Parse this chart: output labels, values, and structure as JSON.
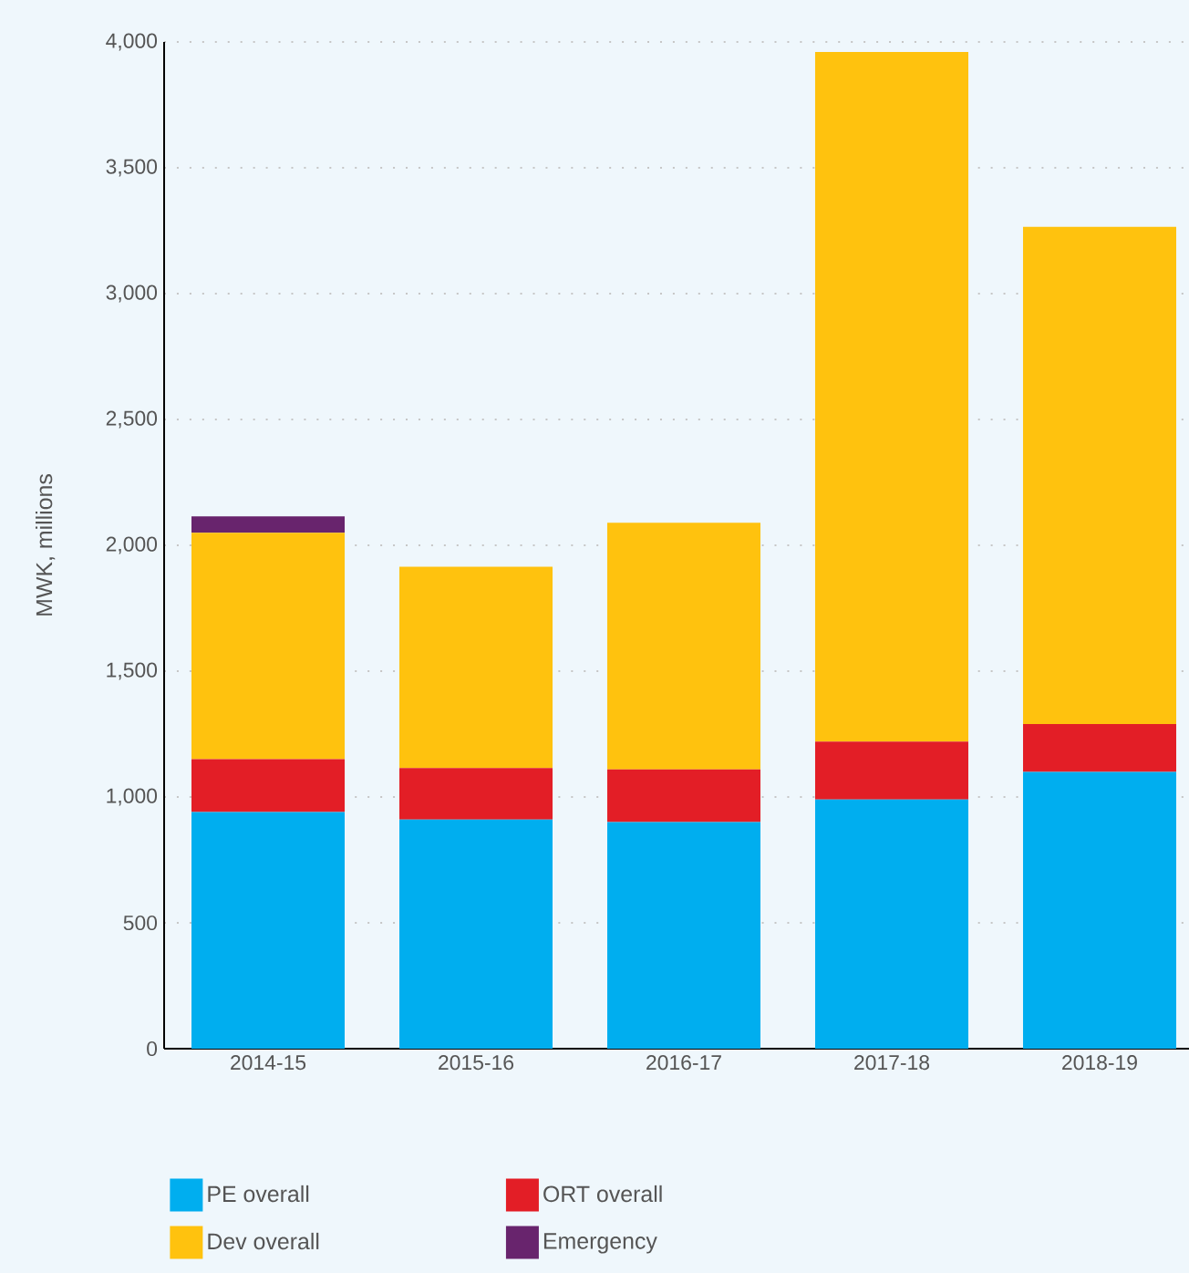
{
  "chart_data": {
    "type": "bar",
    "stacked": true,
    "ylabel": "MWK, millions",
    "categories": [
      "2014-15",
      "2015-16",
      "2016-17",
      "2017-18",
      "2018-19"
    ],
    "series": [
      {
        "name": "PE overall",
        "color": "#00aeef",
        "values": [
          940,
          910,
          900,
          990,
          1100
        ]
      },
      {
        "name": "ORT overall",
        "color": "#e31e26",
        "values": [
          210,
          205,
          210,
          230,
          190
        ]
      },
      {
        "name": "Dev overall",
        "color": "#ffc20e",
        "values": [
          900,
          800,
          980,
          2740,
          1975
        ]
      },
      {
        "name": "Emergency",
        "color": "#68246d",
        "values": [
          65,
          null,
          null,
          null,
          null
        ]
      }
    ],
    "ylim": [
      0,
      4000
    ],
    "yticks": [
      0,
      500,
      {
        "value": 1000,
        "label": "1,000"
      },
      {
        "value": 1500,
        "label": "1,500"
      },
      {
        "value": 2000,
        "label": "2,000"
      },
      {
        "value": 2500,
        "label": "2,500"
      },
      {
        "value": 3000,
        "label": "3,000"
      },
      {
        "value": 3500,
        "label": "3,500"
      },
      {
        "value": 4000,
        "label": "4,000"
      }
    ],
    "grid": "y",
    "legend": "bottom"
  }
}
